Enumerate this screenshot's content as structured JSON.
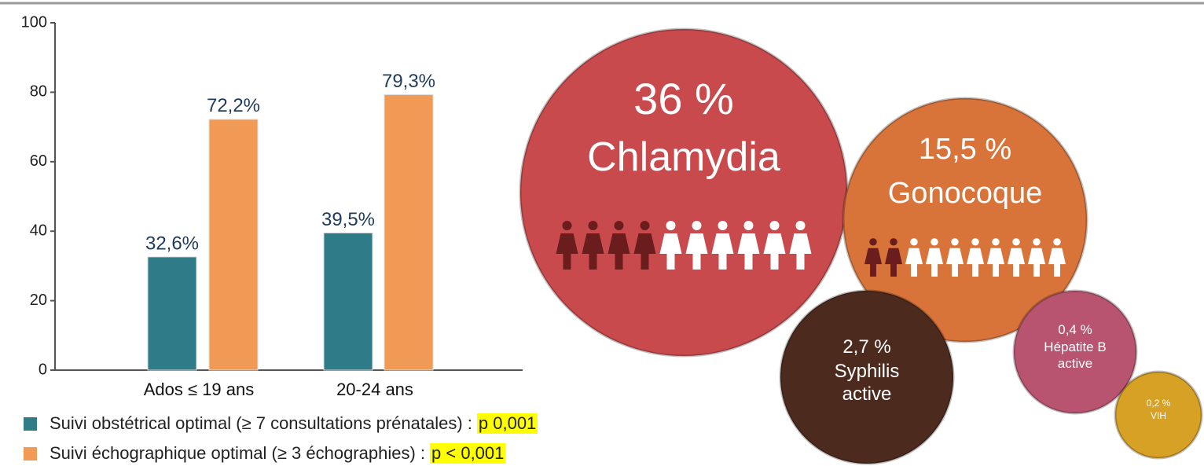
{
  "chart_data": [
    {
      "type": "bar",
      "categories": [
        "Ados ≤ 19 ans",
        "20-24 ans"
      ],
      "series": [
        {
          "name": "Suivi obstétrical optimal (≥ 7 consultations prénatales) :",
          "p_value": "p 0,001",
          "color": "#2f7b88",
          "values": [
            32.6,
            39.5
          ],
          "value_labels": [
            "32,6%",
            "39,5%"
          ]
        },
        {
          "name": "Suivi échographique optimal (≥ 3 échographies) :",
          "p_value": "p < 0,001",
          "color": "#f19a55",
          "values": [
            72.2,
            79.3
          ],
          "value_labels": [
            "72,2%",
            "79,3%"
          ]
        }
      ],
      "ylim": [
        0,
        100
      ],
      "yticks": [
        0,
        20,
        40,
        60,
        80,
        100
      ]
    },
    {
      "type": "bubble",
      "categories": [
        "Chlamydia",
        "Gonocoque",
        "Syphilis active",
        "Hépatite B active",
        "VIH"
      ],
      "values": [
        36,
        15.5,
        2.7,
        0.4,
        0.2
      ],
      "value_labels": [
        "36 %",
        "15,5 %",
        "2,7 %",
        "0,4 %",
        "0,2 %"
      ],
      "colors": [
        "#c84a4c",
        "#d8743a",
        "#4d2a1e",
        "#b8546f",
        "#d6a124"
      ]
    }
  ]
}
